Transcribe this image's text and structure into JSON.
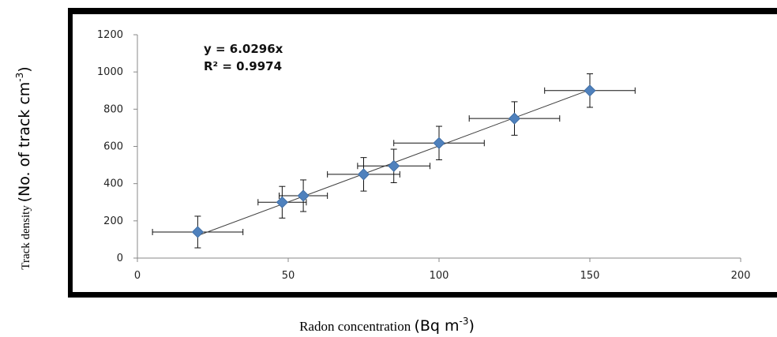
{
  "chart_data": {
    "type": "scatter",
    "x": [
      20,
      48,
      55,
      75,
      85,
      100,
      125,
      150
    ],
    "y": [
      140,
      300,
      335,
      450,
      495,
      618,
      750,
      900
    ],
    "x_error": [
      15,
      8,
      8,
      12,
      12,
      15,
      15,
      15
    ],
    "y_error": [
      85,
      85,
      85,
      90,
      90,
      90,
      90,
      90
    ],
    "marker": "diamond",
    "marker_color": "#4f81bd",
    "trendline": {
      "type": "linear",
      "slope": 6.0296,
      "intercept": 0,
      "color": "#404040"
    },
    "equation_label": "y = 6.0296x",
    "r2_label": "R² = 0.9974",
    "xlim": [
      0,
      200
    ],
    "ylim": [
      0,
      1200
    ],
    "x_ticks": [
      "0",
      "50",
      "100",
      "150",
      "200"
    ],
    "y_ticks": [
      "0",
      "200",
      "400",
      "600",
      "800",
      "1000",
      "1200"
    ],
    "grid": false,
    "xlabel": {
      "main": "Radon concentration ",
      "unit": "(Bq m",
      "sup": "-3",
      "close": ")"
    },
    "ylabel": {
      "main": "Track density ",
      "unit": "(No. of track cm",
      "sup": "-3",
      "close": ")"
    },
    "frame_color": "#000000"
  }
}
